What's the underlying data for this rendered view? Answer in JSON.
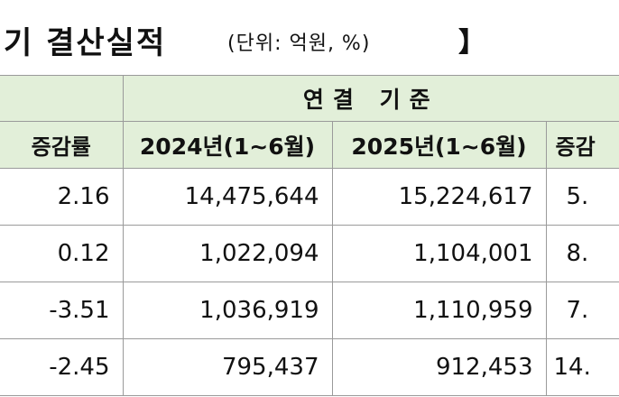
{
  "title": {
    "main": "기  결산실적",
    "unit": "(단위: 억원, %)",
    "bracket": "】"
  },
  "table": {
    "group_header": "연결 기준",
    "columns": [
      "증감률",
      "2024년(1~6월)",
      "2025년(1~6월)",
      "증감"
    ],
    "rows": [
      [
        "2.16",
        "14,475,644",
        "15,224,617",
        "5."
      ],
      [
        "0.12",
        "1,022,094",
        "1,104,001",
        "8."
      ],
      [
        "-3.51",
        "1,036,919",
        "1,110,959",
        "7."
      ],
      [
        "-2.45",
        "795,437",
        "912,453",
        "14."
      ]
    ]
  }
}
